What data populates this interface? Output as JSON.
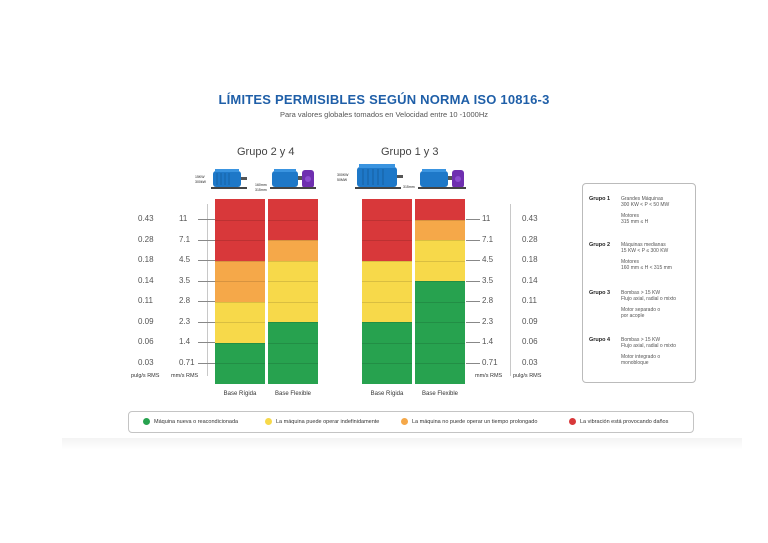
{
  "title": "LÍMITES PERMISIBLES SEGÚN NORMA ISO 10816-3",
  "subtitle": "Para valores globales tomados en Velocidad entre 10 -1000Hz",
  "colors": {
    "green": "#27a24f",
    "yellow": "#f7d94a",
    "orange": "#f5a849",
    "red": "#d8383a",
    "title_blue": "#1f5fa8",
    "motor_blue": "#1e78c8",
    "pump_purple": "#6f2fb0"
  },
  "chart_data": {
    "type": "table",
    "title": "LÍMITES PERMISIBLES SEGÚN NORMA ISO 10816-3",
    "subtitle": "Para valores globales tomados en Velocidad entre 10 -1000Hz",
    "units": {
      "left_inch": "pulg/s RMS",
      "mm": "mm/s RMS"
    },
    "levels_mm_s": [
      "11",
      "7.1",
      "4.5",
      "3.5",
      "2.8",
      "2.3",
      "1.4",
      "0.71"
    ],
    "levels_in_s": [
      "0.43",
      "0.28",
      "0.18",
      "0.14",
      "0.11",
      "0.09",
      "0.06",
      "0.03"
    ],
    "groups": [
      {
        "name": "Grupo 2 y 4",
        "motor_dims": [
          "15KW",
          "300kW",
          "160mm",
          "315mm"
        ],
        "columns": [
          {
            "label": "Base Rígida",
            "zones": [
              "red",
              "red",
              "red",
              "orange",
              "orange",
              "yellow",
              "yellow",
              "green",
              "green"
            ]
          },
          {
            "label": "Base Flexible",
            "zones": [
              "red",
              "red",
              "orange",
              "yellow",
              "yellow",
              "yellow",
              "green",
              "green",
              "green"
            ]
          }
        ]
      },
      {
        "name": "Grupo 1 y 3",
        "motor_dims": [
          "300KW",
          "50MW",
          "315mm"
        ],
        "columns": [
          {
            "label": "Base Rígida",
            "zones": [
              "red",
              "red",
              "red",
              "yellow",
              "yellow",
              "yellow",
              "green",
              "green",
              "green"
            ]
          },
          {
            "label": "Base Flexible",
            "zones": [
              "red",
              "orange",
              "yellow",
              "yellow",
              "green",
              "green",
              "green",
              "green",
              "green"
            ]
          }
        ]
      }
    ],
    "group_info": [
      {
        "name": "Grupo 1",
        "lines": [
          "Grandes Máquinas",
          "300 KW < P < 50 MW",
          "",
          "Motores",
          "315 mm ≤ H"
        ]
      },
      {
        "name": "Grupo 2",
        "lines": [
          "Máquinas medianas",
          "15 KW < P ≤ 300 KW",
          "",
          "Motores",
          "160 mm ≤ H < 315 mm"
        ]
      },
      {
        "name": "Grupo 3",
        "lines": [
          "Bombas > 15 KW",
          "Flujo axial, radial o mixto",
          "",
          "Motor separado o",
          "por acople"
        ]
      },
      {
        "name": "Grupo 4",
        "lines": [
          "Bombas > 15 KW",
          "Flujo axial, radial o mixto",
          "",
          "Motor integrado o",
          "monobloque"
        ]
      }
    ],
    "legend": [
      {
        "color": "green",
        "label": "Máquina nueva o reacondicionada"
      },
      {
        "color": "yellow",
        "label": "La máquina puede operar indefinidamente"
      },
      {
        "color": "orange",
        "label": "La máquina no puede operar un tiempo prolongado"
      },
      {
        "color": "red",
        "label": "La vibración está provocando daños"
      }
    ]
  }
}
